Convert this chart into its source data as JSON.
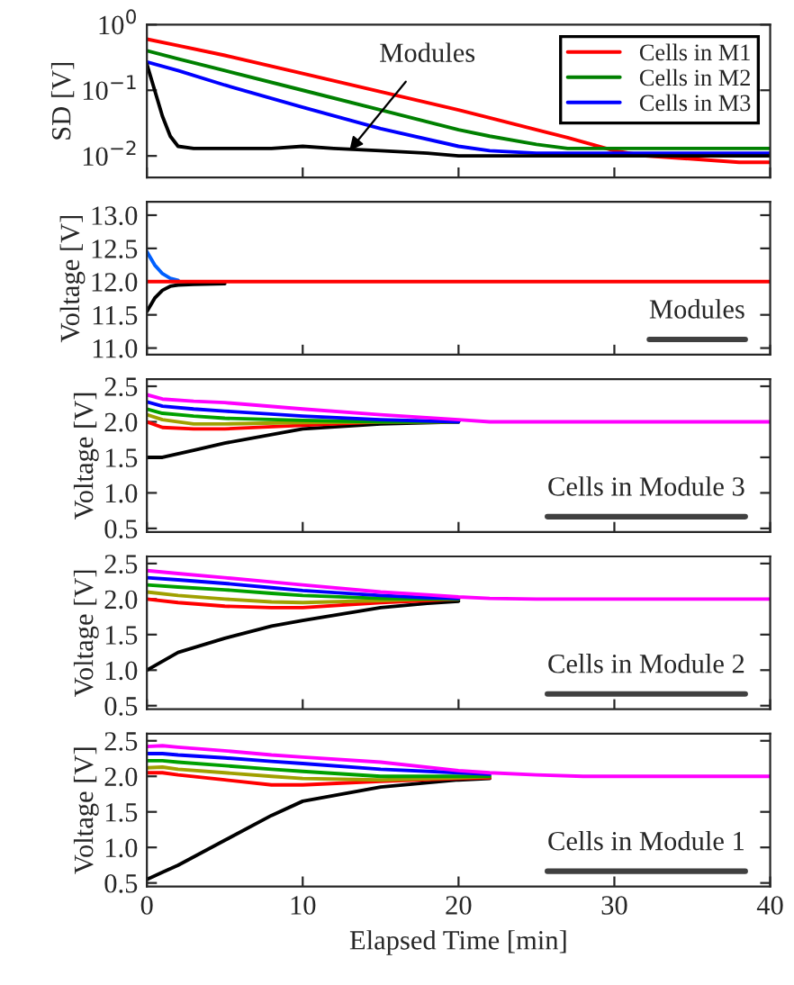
{
  "chart_data": [
    {
      "type": "line",
      "ylabel": "SD [V]",
      "log": "y",
      "xlim": [
        0,
        40
      ],
      "xticks": [
        0,
        10,
        20,
        30,
        40
      ],
      "ylim": [
        0.0047,
        1
      ],
      "yticks": [
        {
          "value": 0.01,
          "label": "10$^{−2}$"
        },
        {
          "value": 0.1,
          "label": "10$^{−1}$"
        },
        {
          "value": 1,
          "label": "10$^{0}$"
        }
      ],
      "tick_labels": "y",
      "legend": "top right",
      "grid": false,
      "x": [
        0,
        2,
        5,
        10,
        15,
        20,
        22,
        25,
        27,
        30,
        32,
        35,
        38,
        40
      ],
      "series": [
        {
          "name": "Cells in M1",
          "color": "#ff0000",
          "values": [
            0.6,
            0.48,
            0.34,
            0.18,
            0.095,
            0.05,
            0.038,
            0.025,
            0.019,
            0.012,
            0.01,
            0.009,
            0.008,
            0.008
          ]
        },
        {
          "name": "Cells in M2",
          "color": "#008000",
          "values": [
            0.4,
            0.3,
            0.2,
            0.1,
            0.05,
            0.025,
            0.02,
            0.015,
            0.013,
            0.013,
            0.013,
            0.013,
            0.013,
            0.013
          ]
        },
        {
          "name": "Cells in M3",
          "color": "#0000ff",
          "values": [
            0.27,
            0.2,
            0.12,
            0.055,
            0.026,
            0.014,
            0.012,
            0.011,
            0.011,
            0.011,
            0.011,
            0.011,
            0.011,
            0.011
          ]
        },
        {
          "color": "#000000",
          "x": [
            0,
            0.5,
            1,
            1.5,
            2,
            3,
            5,
            8,
            10,
            12,
            15,
            18,
            20,
            25,
            30,
            35,
            40
          ],
          "values": [
            0.25,
            0.1,
            0.04,
            0.02,
            0.014,
            0.013,
            0.013,
            0.013,
            0.014,
            0.013,
            0.012,
            0.011,
            0.01,
            0.01,
            0.01,
            0.01,
            0.01
          ]
        }
      ],
      "annotations": [
        {
          "text": "Modules",
          "x": 13,
          "y": 0.012
        }
      ]
    },
    {
      "type": "line",
      "ylabel": "Voltage [V]",
      "xlim": [
        0,
        40
      ],
      "xticks": [
        0,
        10,
        20,
        30,
        40
      ],
      "ylim": [
        10.9,
        13.2
      ],
      "yticks": [
        {
          "value": 11,
          "label": "11.0"
        },
        {
          "value": 11.5,
          "label": "11.5"
        },
        {
          "value": 12,
          "label": "12.0"
        },
        {
          "value": 12.5,
          "label": "12.5"
        },
        {
          "value": 13,
          "label": "13.0"
        }
      ],
      "tick_labels": "y",
      "grid": false,
      "x": [
        0,
        0.5,
        1,
        1.5,
        2,
        3,
        5,
        10,
        20,
        30,
        40
      ],
      "series": [
        {
          "color": "#000000",
          "values": [
            11.55,
            11.75,
            11.87,
            11.93,
            11.95,
            11.96,
            11.97,
            null,
            null,
            null,
            null
          ]
        },
        {
          "color": "#0060ff",
          "values": [
            12.45,
            12.25,
            12.12,
            12.05,
            12.02,
            null,
            null,
            null,
            null,
            null,
            null
          ]
        },
        {
          "color": "#ff0000",
          "values": [
            12.0,
            12.0,
            12.0,
            12.0,
            12.0,
            12.0,
            12.0,
            12.0,
            12.0,
            12.0,
            12.0
          ]
        }
      ],
      "annotations": [
        "Modules"
      ]
    },
    {
      "type": "line",
      "ylabel": "Voltage [V]",
      "xlim": [
        0,
        40
      ],
      "xticks": [
        0,
        10,
        20,
        30,
        40
      ],
      "ylim": [
        0.45,
        2.6
      ],
      "yticks": [
        0.5,
        {
          "value": 1,
          "label": "1.0"
        },
        1.5,
        {
          "value": 2,
          "label": "2.0"
        },
        2.5
      ],
      "tick_labels": "y",
      "grid": false,
      "x": [
        0,
        1,
        3,
        5,
        10,
        15,
        20,
        22,
        25,
        40
      ],
      "series": [
        {
          "color": "#000000",
          "values": [
            1.5,
            1.5,
            1.6,
            1.7,
            1.9,
            1.97,
            2.0,
            null,
            null,
            null
          ]
        },
        {
          "color": "#ff0000",
          "values": [
            2.0,
            1.92,
            1.9,
            1.9,
            1.95,
            2.0,
            2.0,
            null,
            null,
            null
          ]
        },
        {
          "color": "#a0a000",
          "values": [
            2.1,
            2.03,
            1.97,
            1.97,
            1.99,
            2.0,
            2.0,
            null,
            null,
            null
          ]
        },
        {
          "color": "#00a000",
          "values": [
            2.18,
            2.12,
            2.08,
            2.05,
            2.02,
            2.0,
            2.0,
            null,
            null,
            null
          ]
        },
        {
          "color": "#0000ff",
          "values": [
            2.28,
            2.22,
            2.18,
            2.15,
            2.08,
            2.03,
            2.0,
            null,
            null,
            null
          ]
        },
        {
          "color": "#ff00ff",
          "values": [
            2.38,
            2.32,
            2.29,
            2.27,
            2.18,
            2.1,
            2.03,
            2.0,
            2.0,
            2.0
          ]
        }
      ],
      "annotations": [
        "Cells in Module 3"
      ]
    },
    {
      "type": "line",
      "ylabel": "Voltage [V]",
      "xlim": [
        0,
        40
      ],
      "xticks": [
        0,
        10,
        20,
        30,
        40
      ],
      "ylim": [
        0.45,
        2.6
      ],
      "yticks": [
        0.5,
        {
          "value": 1,
          "label": "1.0"
        },
        1.5,
        {
          "value": 2,
          "label": "2.0"
        },
        2.5
      ],
      "tick_labels": "y",
      "grid": false,
      "x": [
        0,
        2,
        5,
        8,
        10,
        15,
        18,
        20,
        22,
        25,
        40
      ],
      "series": [
        {
          "color": "#000000",
          "values": [
            1.0,
            1.25,
            1.45,
            1.62,
            1.7,
            1.88,
            1.94,
            1.97,
            null,
            null,
            null
          ]
        },
        {
          "color": "#ff0000",
          "values": [
            2.0,
            1.95,
            1.9,
            1.88,
            1.88,
            1.95,
            1.98,
            2.0,
            null,
            null,
            null
          ]
        },
        {
          "color": "#a0a000",
          "values": [
            2.1,
            2.05,
            2.0,
            1.96,
            1.95,
            1.98,
            2.0,
            2.0,
            null,
            null,
            null
          ]
        },
        {
          "color": "#00a000",
          "values": [
            2.2,
            2.17,
            2.13,
            2.08,
            2.05,
            2.01,
            2.0,
            2.0,
            null,
            null,
            null
          ]
        },
        {
          "color": "#0000ff",
          "values": [
            2.3,
            2.27,
            2.22,
            2.16,
            2.12,
            2.05,
            2.02,
            2.01,
            null,
            null,
            null
          ]
        },
        {
          "color": "#ff00ff",
          "values": [
            2.4,
            2.36,
            2.3,
            2.24,
            2.2,
            2.1,
            2.06,
            2.03,
            2.01,
            2.0,
            2.0
          ]
        }
      ],
      "annotations": [
        "Cells in Module 2"
      ]
    },
    {
      "type": "line",
      "ylabel": "Voltage [V]",
      "xlabel": "Elapsed Time [min]",
      "xlim": [
        0,
        40
      ],
      "xticks": [
        0,
        10,
        20,
        30,
        40
      ],
      "ylim": [
        0.45,
        2.6
      ],
      "yticks": [
        0.5,
        {
          "value": 1,
          "label": "1.0"
        },
        1.5,
        {
          "value": 2,
          "label": "2.0"
        },
        2.5
      ],
      "grid": false,
      "x": [
        0,
        1,
        2,
        5,
        8,
        10,
        15,
        20,
        22,
        25,
        28,
        30,
        40
      ],
      "series": [
        {
          "color": "#000000",
          "values": [
            0.55,
            0.65,
            0.75,
            1.1,
            1.45,
            1.65,
            1.85,
            1.95,
            1.97,
            null,
            null,
            null,
            null
          ]
        },
        {
          "color": "#ff0000",
          "values": [
            2.05,
            2.05,
            2.02,
            1.95,
            1.88,
            1.88,
            1.93,
            1.97,
            1.98,
            null,
            null,
            null,
            null
          ]
        },
        {
          "color": "#a0a000",
          "values": [
            2.12,
            2.13,
            2.1,
            2.05,
            2.0,
            1.97,
            1.95,
            1.98,
            2.0,
            null,
            null,
            null,
            null
          ]
        },
        {
          "color": "#00a000",
          "values": [
            2.22,
            2.22,
            2.2,
            2.15,
            2.1,
            2.07,
            2.0,
            2.0,
            2.0,
            null,
            null,
            null,
            null
          ]
        },
        {
          "color": "#0000ff",
          "values": [
            2.32,
            2.32,
            2.3,
            2.26,
            2.21,
            2.18,
            2.1,
            2.05,
            2.03,
            null,
            null,
            null,
            null
          ]
        },
        {
          "color": "#ff00ff",
          "values": [
            2.42,
            2.43,
            2.41,
            2.36,
            2.3,
            2.27,
            2.2,
            2.08,
            2.05,
            2.02,
            2.0,
            2.0,
            2.0
          ]
        }
      ],
      "annotations": [
        "Cells in Module 1"
      ]
    }
  ]
}
